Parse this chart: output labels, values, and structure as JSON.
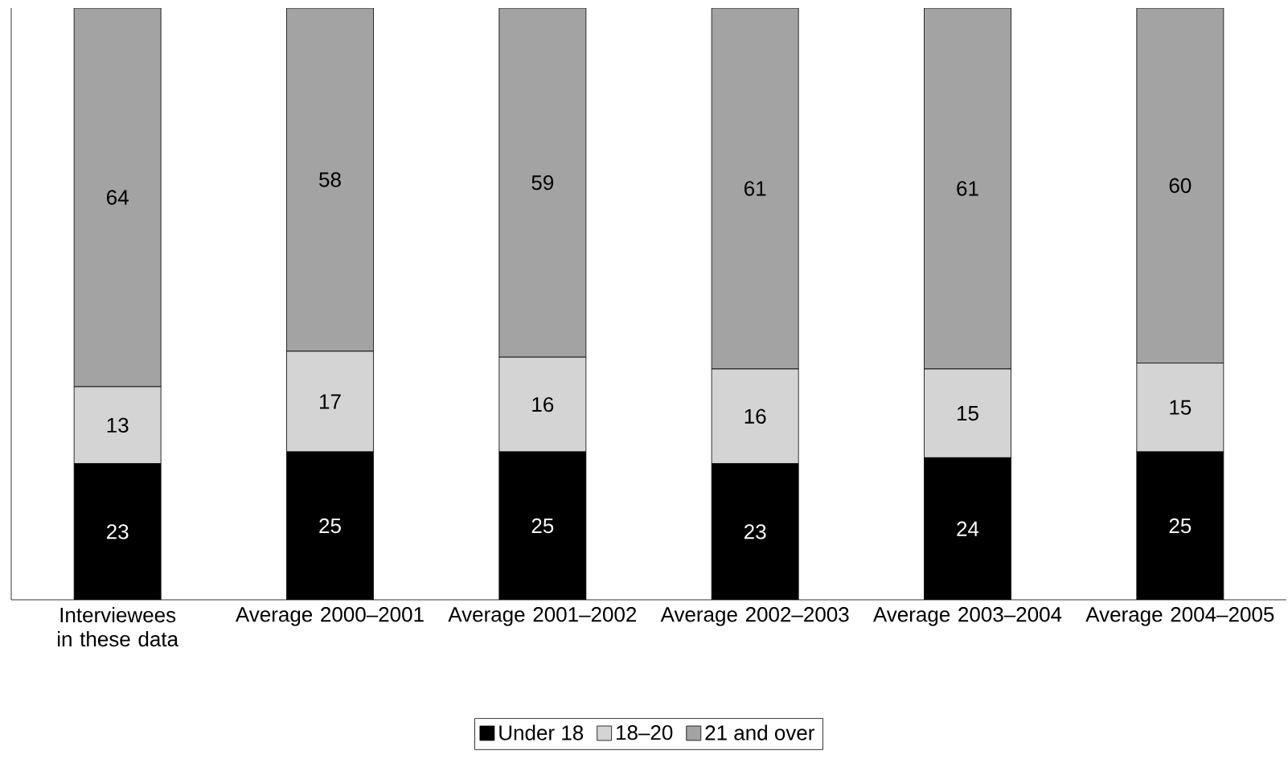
{
  "chart_data": {
    "type": "bar",
    "stacked": true,
    "categories": [
      "Interviewees in these data",
      "Average 2000–2001",
      "Average 2001–2002",
      "Average 2002–2003",
      "Average 2003–2004",
      "Average 2004–2005"
    ],
    "series": [
      {
        "name": "Under 18",
        "color": "#000000",
        "values": [
          23,
          25,
          25,
          23,
          24,
          25
        ]
      },
      {
        "name": "18–20",
        "color": "#d4d4d4",
        "values": [
          13,
          17,
          16,
          16,
          15,
          15
        ]
      },
      {
        "name": "21 and over",
        "color": "#a3a3a3",
        "values": [
          64,
          58,
          59,
          61,
          61,
          60
        ]
      }
    ],
    "data_labels": true,
    "legend": "bottom"
  }
}
